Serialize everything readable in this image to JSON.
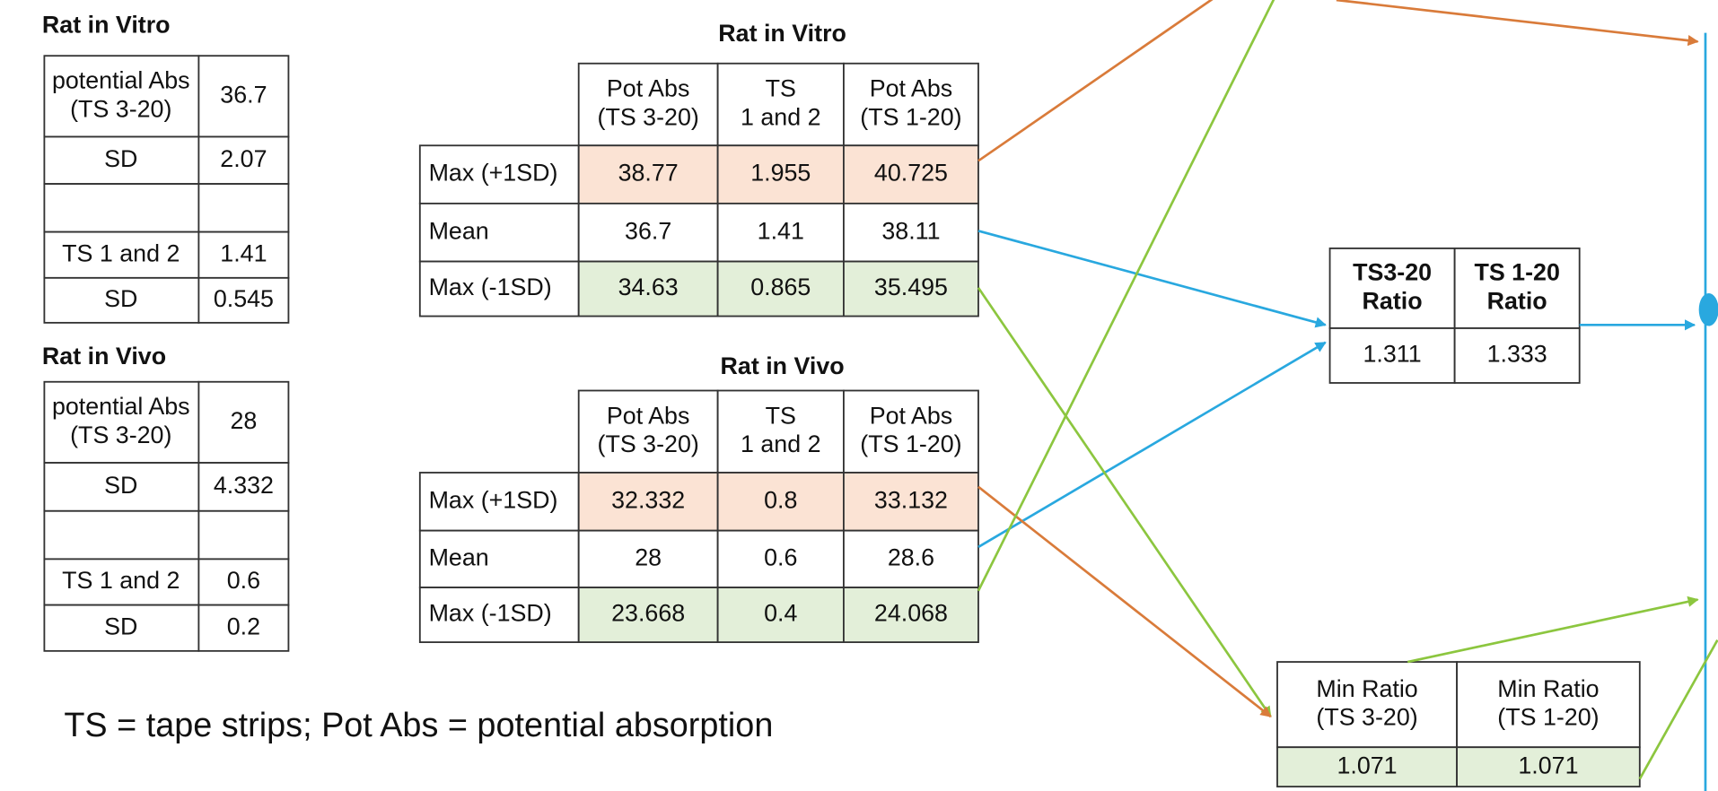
{
  "left_tables": [
    {
      "title": "Rat in Vitro",
      "rows": [
        [
          [
            "potential Abs",
            "(TS 3-20)"
          ],
          "36.7"
        ],
        [
          "SD",
          "2.07"
        ],
        [
          "TS 1 and 2",
          "1.41"
        ],
        [
          "SD",
          "0.545"
        ]
      ]
    },
    {
      "title": "Rat in Vivo",
      "rows": [
        [
          [
            "potential Abs",
            "(TS 3-20)"
          ],
          "28"
        ],
        [
          "SD",
          "4.332"
        ],
        [
          "TS 1 and 2",
          "0.6"
        ],
        [
          "SD",
          "0.2"
        ]
      ]
    }
  ],
  "mid_tables": [
    {
      "title": "Rat in Vitro",
      "columns": [
        [
          "Pot Abs",
          "(TS 3-20)"
        ],
        [
          "TS",
          "1 and 2"
        ],
        [
          "Pot Abs",
          "(TS 1-20)"
        ]
      ],
      "rows": [
        {
          "label": "Max (+1SD)",
          "values": [
            "38.77",
            "1.955",
            "40.725"
          ]
        },
        {
          "label": "Mean",
          "values": [
            "36.7",
            "1.41",
            "38.11"
          ]
        },
        {
          "label": "Max (-1SD)",
          "values": [
            "34.63",
            "0.865",
            "35.495"
          ]
        }
      ]
    },
    {
      "title": "Rat in Vivo",
      "columns": [
        [
          "Pot Abs",
          "(TS 3-20)"
        ],
        [
          "TS",
          "1 and 2"
        ],
        [
          "Pot Abs",
          "(TS 1-20)"
        ]
      ],
      "rows": [
        {
          "label": "Max (+1SD)",
          "values": [
            "32.332",
            "0.8",
            "33.132"
          ]
        },
        {
          "label": "Mean",
          "values": [
            "28",
            "0.6",
            "28.6"
          ]
        },
        {
          "label": "Max (-1SD)",
          "values": [
            "23.668",
            "0.4",
            "24.068"
          ]
        }
      ]
    }
  ],
  "ratio_table": {
    "columns": [
      [
        "TS3-20",
        "Ratio"
      ],
      [
        "TS 1-20",
        "Ratio"
      ]
    ],
    "values": [
      "1.311",
      "1.333"
    ]
  },
  "min_table": {
    "columns": [
      [
        "Min Ratio",
        "(TS 3-20)"
      ],
      [
        "Min Ratio",
        "(TS 1-20)"
      ]
    ],
    "values": [
      "1.071",
      "1.071"
    ]
  },
  "footnote": "TS = tape strips; Pot Abs = potential absorption"
}
